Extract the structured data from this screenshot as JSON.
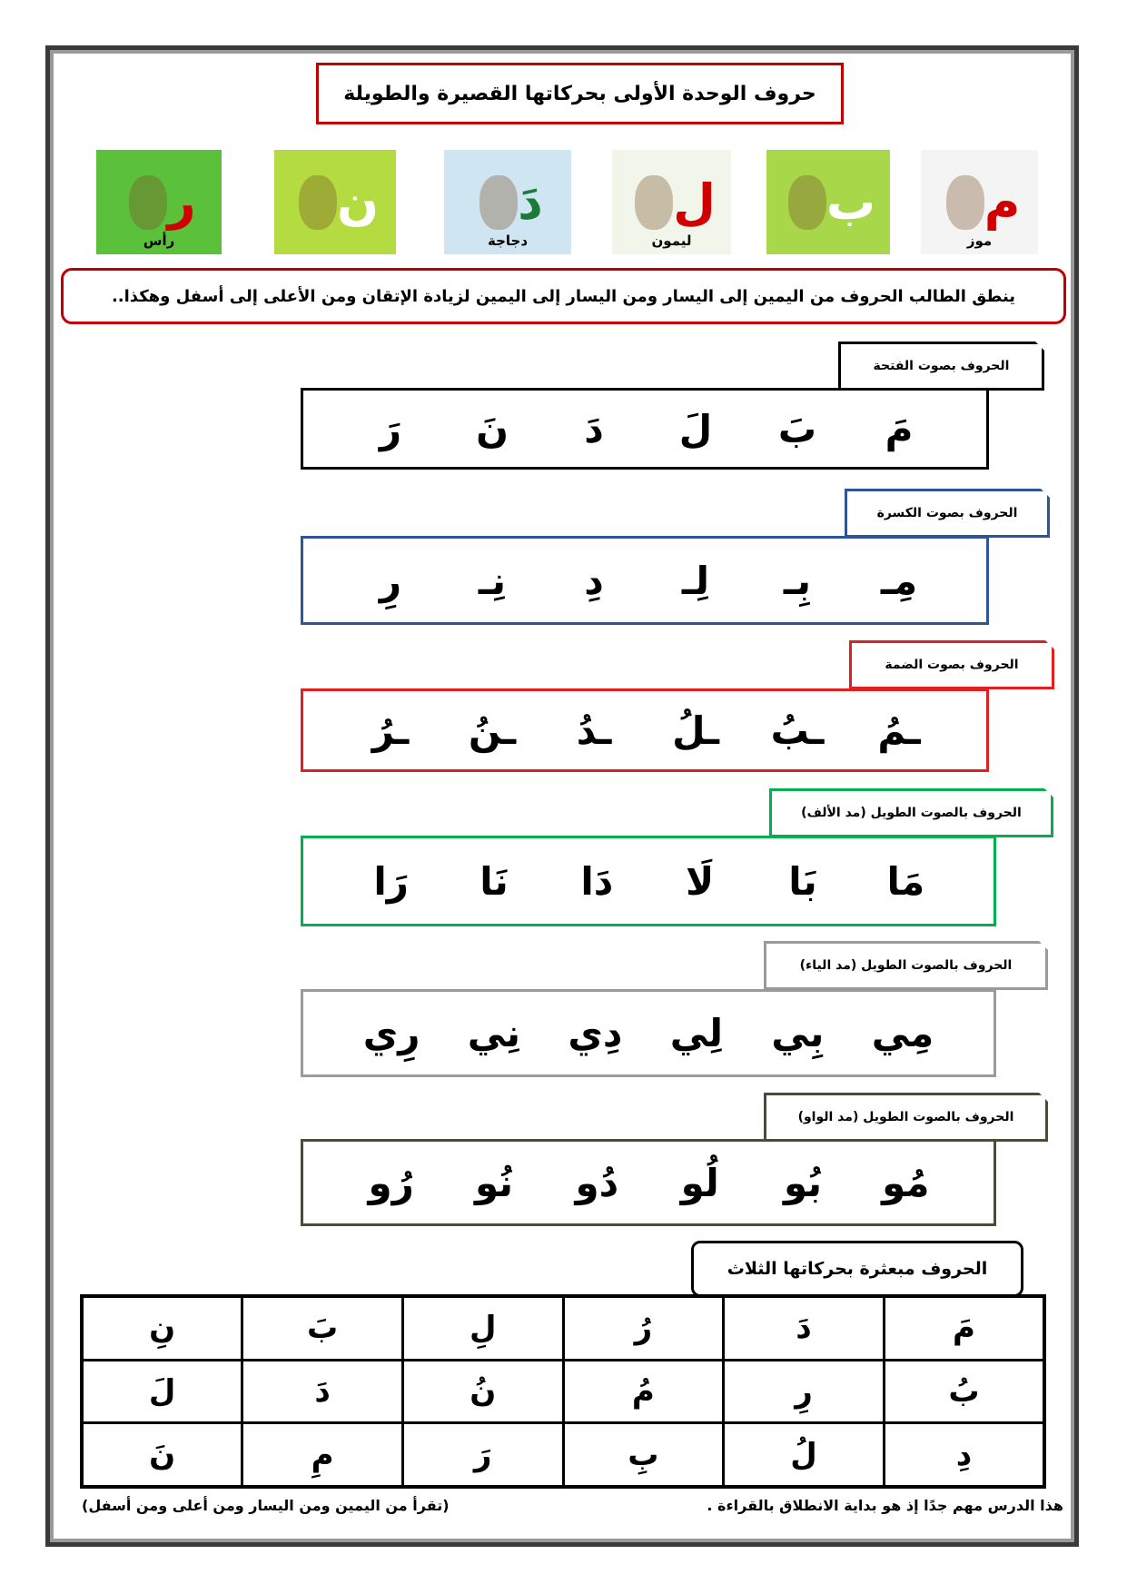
{
  "title": "حروف الوحدة الأولى بحركاتها القصيرة والطويلة",
  "pictures": [
    {
      "letter": "م",
      "word": "موز",
      "bg": "#f4f4f4",
      "color": "#d00000",
      "icon": "banana-icon"
    },
    {
      "letter": "ب",
      "word": "",
      "bg": "#a8d84a",
      "color": "#ffffff",
      "icon": "cow-icon"
    },
    {
      "letter": "ل",
      "word": "ليمون",
      "bg": "#f2f6ea",
      "color": "#d00000",
      "icon": "lemon-icon"
    },
    {
      "letter": "دَ",
      "word": "دجاجة",
      "bg": "#cfe6f2",
      "color": "#1a7a3a",
      "icon": "hen-icon"
    },
    {
      "letter": "ن",
      "word": "",
      "bg": "#b4dc40",
      "color": "#ffffff",
      "icon": "ant-icon"
    },
    {
      "letter": "ر",
      "word": "رأس",
      "bg": "#5cc13a",
      "color": "#d00000",
      "icon": "boy-face-icon"
    }
  ],
  "instruction": "ينطق الطالب الحروف من اليمين إلى اليسار ومن اليسار إلى اليمين لزيادة الإتقان ومن الأعلى إلى أسفل وهكذا..",
  "sections": [
    {
      "label": "الحروف بصوت الفتحة",
      "color": "#000000",
      "letters": [
        "مَ",
        "بَ",
        "لَ",
        "دَ",
        "نَ",
        "رَ"
      ]
    },
    {
      "label": "الحروف بصوت الكسرة",
      "color": "#2f5597",
      "letters": [
        "مِـ",
        "بِـ",
        "لِـ",
        "دِ",
        "نِـ",
        "رِ"
      ]
    },
    {
      "label": "الحروف بصوت الضمة",
      "color": "#e02020",
      "letters": [
        "ـمُ",
        "ـبُ",
        "ـلُ",
        "ـدُ",
        "ـنُ",
        "ـرُ"
      ]
    },
    {
      "label": "الحروف بالصوت الطويل (مد الألف)",
      "color": "#00b050",
      "letters": [
        "مَا",
        "بَا",
        "لَا",
        "دَا",
        "نَا",
        "رَا"
      ]
    },
    {
      "label": "الحروف بالصوت الطويل (مد الياء)",
      "color": "#9a9a9a",
      "letters": [
        "مِي",
        "بِي",
        "لِي",
        "دِي",
        "نِي",
        "رِي"
      ]
    },
    {
      "label": "الحروف بالصوت الطويل (مد الواو)",
      "color": "#4d4a3a",
      "letters": [
        "مُو",
        "بُو",
        "لُو",
        "دُو",
        "نُو",
        "رُو"
      ]
    }
  ],
  "scattered": {
    "label": "الحروف مبعثرة بحركاتها الثلاث",
    "rows": [
      [
        "مَ",
        "دَ",
        "رُ",
        "لِ",
        "بَ",
        "نِ"
      ],
      [
        "بُ",
        "رِ",
        "مُ",
        "نُ",
        "دَ",
        "لَ"
      ],
      [
        "دِ",
        "لُ",
        "بِ",
        "رَ",
        "مِ",
        "نَ"
      ]
    ]
  },
  "footer": {
    "right": "هذا الدرس مهم جدًا إذ هو بداية الانطلاق بالقراءة .",
    "left": "(تقرأ من اليمين ومن اليسار ومن أعلى ومن أسفل)"
  }
}
